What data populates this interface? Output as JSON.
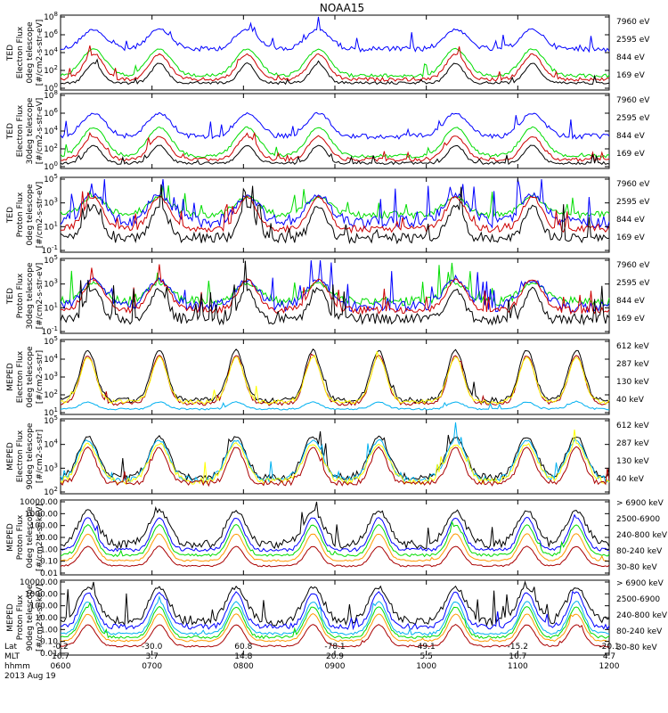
{
  "title": "NOAA15",
  "date_label": "2013 Aug 19",
  "colors": {
    "black": "#000000",
    "red": "#cc0000",
    "green": "#00dd00",
    "blue": "#0000ff",
    "yellow": "#ffff00",
    "cyan": "#00b0f0",
    "orange": "#ff9900",
    "darkred": "#aa0000",
    "green2": "#00ee00"
  },
  "x_axis": {
    "row_labels": [
      "Lat",
      "MLT",
      "hhmm"
    ],
    "ticks": [
      {
        "lat": "-0.2",
        "mlt": "16.7",
        "hhmm": "0600"
      },
      {
        "lat": "-30.0",
        "mlt": "3.7",
        "hhmm": "0700"
      },
      {
        "lat": "60.8",
        "mlt": "14.8",
        "hhmm": "0800"
      },
      {
        "lat": "-78.1",
        "mlt": "20.9",
        "hhmm": "0900"
      },
      {
        "lat": "49.1",
        "mlt": "5.5",
        "hhmm": "1000"
      },
      {
        "lat": "-15.2",
        "mlt": "16.7",
        "hhmm": "1100"
      },
      {
        "lat": "-20.1",
        "mlt": "4.7",
        "hhmm": "1200"
      }
    ]
  },
  "chart_data": [
    {
      "type": "line",
      "ylabel": [
        "TED",
        "Electron Flux",
        "0deg telescope",
        "[#/cm2-s-str-eV]"
      ],
      "yscale": "log",
      "ytick_labels": [
        "10^0",
        "10^2",
        "10^4",
        "10^6",
        "10^8"
      ],
      "legend": [
        {
          "label": "7960 eV",
          "color": "#000000"
        },
        {
          "label": "2595 eV",
          "color": "#cc0000"
        },
        {
          "label": "844 eV",
          "color": "#00dd00"
        },
        {
          "label": "169 eV",
          "color": "#0000ff"
        }
      ]
    },
    {
      "type": "line",
      "ylabel": [
        "TED",
        "Electron Flux",
        "30deg telescope",
        "[#/cm2-s-str-eV]"
      ],
      "yscale": "log",
      "ytick_labels": [
        "10^0",
        "10^2",
        "10^4",
        "10^6",
        "10^8"
      ],
      "legend": [
        {
          "label": "7960 eV",
          "color": "#000000"
        },
        {
          "label": "2595 eV",
          "color": "#cc0000"
        },
        {
          "label": "844 eV",
          "color": "#00dd00"
        },
        {
          "label": "169 eV",
          "color": "#0000ff"
        }
      ]
    },
    {
      "type": "line",
      "ylabel": [
        "TED",
        "Proton Flux",
        "0deg telescope",
        "[#/cm2-s-str-eV]"
      ],
      "yscale": "log",
      "ytick_labels": [
        "10^-1",
        "10^1",
        "10^3",
        "10^5"
      ],
      "legend": [
        {
          "label": "7960 eV",
          "color": "#000000"
        },
        {
          "label": "2595 eV",
          "color": "#cc0000"
        },
        {
          "label": "844 eV",
          "color": "#00dd00"
        },
        {
          "label": "169 eV",
          "color": "#0000ff"
        }
      ]
    },
    {
      "type": "line",
      "ylabel": [
        "TED",
        "Proton Flux",
        "30deg telescope",
        "[#/cm2-s-str-eV]"
      ],
      "yscale": "log",
      "ytick_labels": [
        "10^-1",
        "10^1",
        "10^3",
        "10^5"
      ],
      "legend": [
        {
          "label": "7960 eV",
          "color": "#000000"
        },
        {
          "label": "2595 eV",
          "color": "#cc0000"
        },
        {
          "label": "844 eV",
          "color": "#00dd00"
        },
        {
          "label": "169 eV",
          "color": "#0000ff"
        }
      ]
    },
    {
      "type": "line",
      "ylabel": [
        "MEPED",
        "Electron Flux",
        "0deg telescope",
        "[#/cm2-s-str]"
      ],
      "yscale": "log",
      "ytick_labels": [
        "10^1",
        "10^2",
        "10^3",
        "10^4",
        "10^5"
      ],
      "legend": [
        {
          "label": "612 keV",
          "color": "#aa0000"
        },
        {
          "label": "287 keV",
          "color": "#ffff00"
        },
        {
          "label": "130 keV",
          "color": "#00b0f0"
        },
        {
          "label": "40 keV",
          "color": "#000000"
        }
      ]
    },
    {
      "type": "line",
      "ylabel": [
        "MEPED",
        "Electron Flux",
        "90deg telescope",
        "[#/cm2-s-str]"
      ],
      "yscale": "log",
      "ytick_labels": [
        "10^2",
        "10^3",
        "10^4",
        "10^5"
      ],
      "legend": [
        {
          "label": "612 keV",
          "color": "#aa0000"
        },
        {
          "label": "287 keV",
          "color": "#ffff00"
        },
        {
          "label": "130 keV",
          "color": "#00b0f0"
        },
        {
          "label": "40 keV",
          "color": "#000000"
        }
      ]
    },
    {
      "type": "line",
      "ylabel": [
        "MEPED",
        "Proton Flux",
        "0deg telescope",
        "[#/cm2-s-sr-keV]"
      ],
      "yscale": "log",
      "ytick_labels": [
        "0.01",
        "0.10",
        "1.00",
        "10.00",
        "100.00",
        "1000.00",
        "10000.00"
      ],
      "legend": [
        {
          "label": "> 6900 keV",
          "color": "#aa0000"
        },
        {
          "label": "2500-6900",
          "color": "#ff9900"
        },
        {
          "label": "240-800 keV",
          "color": "#00ee00"
        },
        {
          "label": "80-240 keV",
          "color": "#0000ff"
        },
        {
          "label": "30-80 keV",
          "color": "#000000"
        }
      ]
    },
    {
      "type": "line",
      "ylabel": [
        "MEPED",
        "Proton Flux",
        "90deg telescope",
        "[#/cm2-s-sr-keV]"
      ],
      "yscale": "log",
      "ytick_labels": [
        "0.01",
        "0.10",
        "1.00",
        "10.00",
        "100.00",
        "1000.00",
        "10000.00"
      ],
      "legend": [
        {
          "label": "> 6900 keV",
          "color": "#aa0000"
        },
        {
          "label": "2500-6900",
          "color": "#ff9900"
        },
        {
          "label": "240-800 keV",
          "color": "#00ee00"
        },
        {
          "label": "80-240 keV",
          "color": "#0000ff"
        },
        {
          "label": "30-80 keV",
          "color": "#000000"
        }
      ]
    }
  ]
}
